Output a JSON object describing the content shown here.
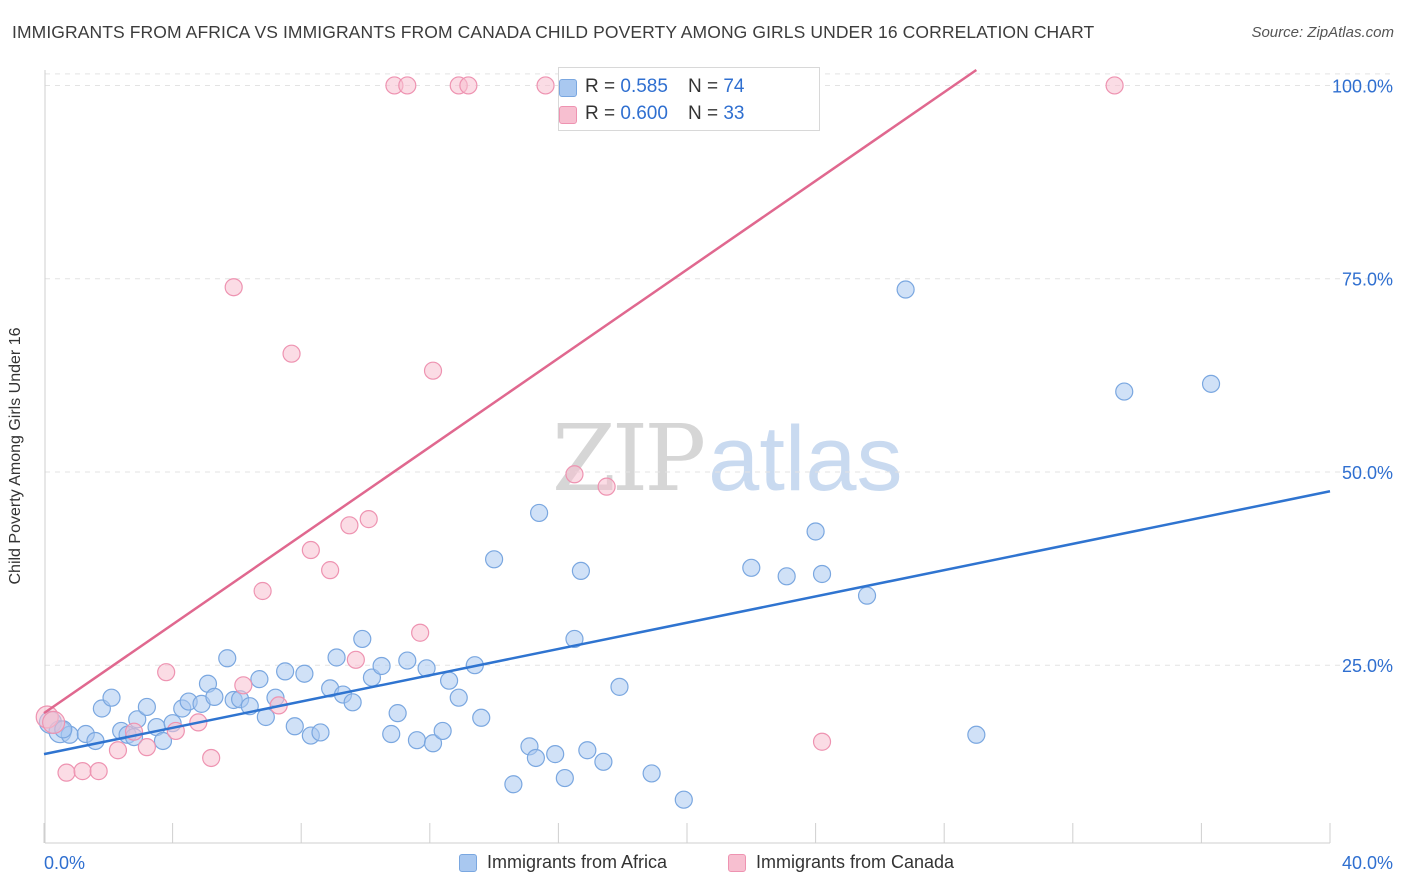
{
  "title": "IMMIGRANTS FROM AFRICA VS IMMIGRANTS FROM CANADA CHILD POVERTY AMONG GIRLS UNDER 16 CORRELATION CHART",
  "source": "Source: ZipAtlas.com",
  "watermark": {
    "zip": "ZIP",
    "atlas": "atlas"
  },
  "colors": {
    "africa_fill": "#a9c8f0",
    "africa_stroke": "#7aa7e0",
    "africa_line": "#2f74d0",
    "canada_fill": "#f7bfd0",
    "canada_stroke": "#ee93b1",
    "canada_line": "#e0688f",
    "stat_value": "#2f6fd0",
    "grid": "#e3e3e3"
  },
  "stats": [
    {
      "r_label": "R =",
      "r_value": "0.585",
      "n_label": "N =",
      "n_value": "74"
    },
    {
      "r_label": "R =",
      "r_value": "0.600",
      "n_label": "N =",
      "n_value": "33"
    }
  ],
  "legend": [
    "Immigrants from Africa",
    "Immigrants from Canada"
  ],
  "chart_data": {
    "type": "scatter",
    "title": "IMMIGRANTS FROM AFRICA VS IMMIGRANTS FROM CANADA CHILD POVERTY AMONG GIRLS UNDER 16 CORRELATION CHART",
    "xlabel": "",
    "ylabel": "Child Poverty Among Girls Under 16",
    "xlim": [
      0,
      40
    ],
    "ylim": [
      2,
      102
    ],
    "x_tick_labels": [
      "0.0%",
      "40.0%"
    ],
    "y_tick_labels": [
      "25.0%",
      "50.0%",
      "75.0%",
      "100.0%"
    ],
    "y_tick_values": [
      25,
      50,
      75,
      100
    ],
    "grid": true,
    "legend_position": "bottom",
    "series": [
      {
        "name": "Immigrants from Africa",
        "trend": [
          [
            0,
            13.5
          ],
          [
            40,
            47.5
          ]
        ],
        "points": [
          [
            0.2,
            17.6
          ],
          [
            0.5,
            16.4
          ],
          [
            0.8,
            16.0
          ],
          [
            1.3,
            16.1
          ],
          [
            1.6,
            15.2
          ],
          [
            1.8,
            19.4
          ],
          [
            2.1,
            20.8
          ],
          [
            2.4,
            16.5
          ],
          [
            2.6,
            16.0
          ],
          [
            2.8,
            15.7
          ],
          [
            2.9,
            18.0
          ],
          [
            3.2,
            19.6
          ],
          [
            3.5,
            17.0
          ],
          [
            3.7,
            15.2
          ],
          [
            4.0,
            17.5
          ],
          [
            4.3,
            19.4
          ],
          [
            4.5,
            20.3
          ],
          [
            4.9,
            20.0
          ],
          [
            5.1,
            22.6
          ],
          [
            5.3,
            20.9
          ],
          [
            5.7,
            25.9
          ],
          [
            5.9,
            20.5
          ],
          [
            6.1,
            20.6
          ],
          [
            6.4,
            19.7
          ],
          [
            6.7,
            23.2
          ],
          [
            6.9,
            18.3
          ],
          [
            7.2,
            20.8
          ],
          [
            7.5,
            24.2
          ],
          [
            7.8,
            17.1
          ],
          [
            8.1,
            23.9
          ],
          [
            8.3,
            15.9
          ],
          [
            8.6,
            16.3
          ],
          [
            8.9,
            22.0
          ],
          [
            9.1,
            26.0
          ],
          [
            9.3,
            21.2
          ],
          [
            9.6,
            20.2
          ],
          [
            9.9,
            28.4
          ],
          [
            10.2,
            23.4
          ],
          [
            10.5,
            24.9
          ],
          [
            10.8,
            16.1
          ],
          [
            11.0,
            18.8
          ],
          [
            11.3,
            25.6
          ],
          [
            11.6,
            15.3
          ],
          [
            11.9,
            24.6
          ],
          [
            12.1,
            14.9
          ],
          [
            12.4,
            16.5
          ],
          [
            12.6,
            23.0
          ],
          [
            12.9,
            20.8
          ],
          [
            13.4,
            25.0
          ],
          [
            13.6,
            18.2
          ],
          [
            14.0,
            38.7
          ],
          [
            14.6,
            9.6
          ],
          [
            15.1,
            14.5
          ],
          [
            15.3,
            13.0
          ],
          [
            15.4,
            44.7
          ],
          [
            15.9,
            13.5
          ],
          [
            16.2,
            10.4
          ],
          [
            16.5,
            28.4
          ],
          [
            16.7,
            37.2
          ],
          [
            16.9,
            14.0
          ],
          [
            17.4,
            12.5
          ],
          [
            17.9,
            22.2
          ],
          [
            18.9,
            11.0
          ],
          [
            19.9,
            7.6
          ],
          [
            22.0,
            37.6
          ],
          [
            23.1,
            36.5
          ],
          [
            24.0,
            42.3
          ],
          [
            24.2,
            36.8
          ],
          [
            25.6,
            34.0
          ],
          [
            26.8,
            73.6
          ],
          [
            29.0,
            16.0
          ],
          [
            33.6,
            60.4
          ],
          [
            36.3,
            61.4
          ],
          [
            0.6,
            16.7
          ]
        ]
      },
      {
        "name": "Immigrants from Canada",
        "trend": [
          [
            0,
            18.8
          ],
          [
            29.0,
            102.0
          ]
        ],
        "points": [
          [
            0.1,
            18.3
          ],
          [
            0.3,
            17.6
          ],
          [
            0.7,
            11.1
          ],
          [
            1.2,
            11.3
          ],
          [
            1.7,
            11.3
          ],
          [
            2.3,
            14.0
          ],
          [
            2.8,
            16.4
          ],
          [
            3.2,
            14.4
          ],
          [
            3.8,
            24.1
          ],
          [
            4.1,
            16.5
          ],
          [
            4.8,
            17.6
          ],
          [
            5.2,
            13.0
          ],
          [
            5.9,
            73.9
          ],
          [
            6.2,
            22.4
          ],
          [
            6.8,
            34.6
          ],
          [
            7.3,
            19.8
          ],
          [
            7.7,
            65.3
          ],
          [
            8.3,
            39.9
          ],
          [
            8.9,
            37.3
          ],
          [
            9.5,
            43.1
          ],
          [
            9.7,
            25.7
          ],
          [
            10.1,
            43.9
          ],
          [
            10.9,
            100.0
          ],
          [
            11.3,
            100.0
          ],
          [
            11.7,
            29.2
          ],
          [
            12.1,
            63.1
          ],
          [
            12.9,
            100.0
          ],
          [
            13.2,
            100.0
          ],
          [
            15.6,
            100.0
          ],
          [
            16.5,
            49.7
          ],
          [
            17.5,
            48.1
          ],
          [
            24.2,
            15.1
          ],
          [
            33.3,
            100.0
          ]
        ]
      }
    ]
  }
}
